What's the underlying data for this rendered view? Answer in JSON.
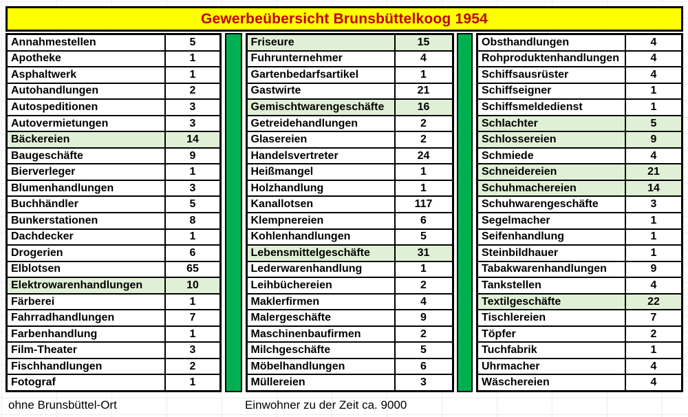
{
  "title": "Gewerbeübersicht Brunsbüttelkoog 1954",
  "footer": {
    "left": "ohne Brunsbüttel-Ort",
    "right": "Einwohner zu der Zeit ca. 9000"
  },
  "colors": {
    "title_background": "#FFFF00",
    "title_text": "#C00000",
    "separator_green": "#00B050",
    "highlight_green": "#E0F0D6",
    "border": "#000000"
  },
  "columns": [
    {
      "rows": [
        {
          "label": "Annahmestellen",
          "value": 5,
          "highlight": false
        },
        {
          "label": "Apotheke",
          "value": 1,
          "highlight": false
        },
        {
          "label": "Asphaltwerk",
          "value": 1,
          "highlight": false
        },
        {
          "label": "Autohandlungen",
          "value": 2,
          "highlight": false
        },
        {
          "label": "Autospeditionen",
          "value": 3,
          "highlight": false
        },
        {
          "label": "Autovermietungen",
          "value": 3,
          "highlight": false
        },
        {
          "label": "Bäckereien",
          "value": 14,
          "highlight": true
        },
        {
          "label": "Baugeschäfte",
          "value": 9,
          "highlight": false
        },
        {
          "label": "Bierverleger",
          "value": 1,
          "highlight": false
        },
        {
          "label": "Blumenhandlungen",
          "value": 3,
          "highlight": false
        },
        {
          "label": "Buchhändler",
          "value": 5,
          "highlight": false
        },
        {
          "label": "Bunkerstationen",
          "value": 8,
          "highlight": false
        },
        {
          "label": "Dachdecker",
          "value": 1,
          "highlight": false
        },
        {
          "label": "Drogerien",
          "value": 6,
          "highlight": false
        },
        {
          "label": "Elblotsen",
          "value": 65,
          "highlight": false
        },
        {
          "label": "Elektrowarenhandlungen",
          "value": 10,
          "highlight": true
        },
        {
          "label": "Färberei",
          "value": 1,
          "highlight": false
        },
        {
          "label": "Fahrradhandlungen",
          "value": 7,
          "highlight": false
        },
        {
          "label": "Farbenhandlung",
          "value": 1,
          "highlight": false
        },
        {
          "label": "Film-Theater",
          "value": 3,
          "highlight": false
        },
        {
          "label": "Fischhandlungen",
          "value": 2,
          "highlight": false
        },
        {
          "label": "Fotograf",
          "value": 1,
          "highlight": false
        }
      ]
    },
    {
      "rows": [
        {
          "label": "Friseure",
          "value": 15,
          "highlight": true
        },
        {
          "label": "Fuhrunternehmer",
          "value": 4,
          "highlight": false
        },
        {
          "label": "Gartenbedarfsartikel",
          "value": 1,
          "highlight": false
        },
        {
          "label": "Gastwirte",
          "value": 21,
          "highlight": false
        },
        {
          "label": "Gemischtwarengeschäfte",
          "value": 16,
          "highlight": true
        },
        {
          "label": "Getreidehandlungen",
          "value": 2,
          "highlight": false
        },
        {
          "label": "Glasereien",
          "value": 2,
          "highlight": false
        },
        {
          "label": "Handelsvertreter",
          "value": 24,
          "highlight": false
        },
        {
          "label": "Heißmangel",
          "value": 1,
          "highlight": false
        },
        {
          "label": "Holzhandlung",
          "value": 1,
          "highlight": false
        },
        {
          "label": "Kanallotsen",
          "value": 117,
          "highlight": false
        },
        {
          "label": "Klempnereien",
          "value": 6,
          "highlight": false
        },
        {
          "label": "Kohlenhandlungen",
          "value": 5,
          "highlight": false
        },
        {
          "label": "Lebensmittelgeschäfte",
          "value": 31,
          "highlight": true
        },
        {
          "label": "Lederwarenhandlung",
          "value": 1,
          "highlight": false
        },
        {
          "label": "Leihbüchereien",
          "value": 2,
          "highlight": false
        },
        {
          "label": "Maklerfirmen",
          "value": 4,
          "highlight": false
        },
        {
          "label": "Malergeschäfte",
          "value": 9,
          "highlight": false
        },
        {
          "label": "Maschinenbaufirmen",
          "value": 2,
          "highlight": false
        },
        {
          "label": "Milchgeschäfte",
          "value": 5,
          "highlight": false
        },
        {
          "label": "Möbelhandlungen",
          "value": 6,
          "highlight": false
        },
        {
          "label": "Müllereien",
          "value": 3,
          "highlight": false
        }
      ]
    },
    {
      "rows": [
        {
          "label": "Obsthandlungen",
          "value": 4,
          "highlight": false
        },
        {
          "label": "Rohproduktenhandlungen",
          "value": 4,
          "highlight": false
        },
        {
          "label": "Schiffsausrüster",
          "value": 4,
          "highlight": false
        },
        {
          "label": "Schiffseigner",
          "value": 1,
          "highlight": false
        },
        {
          "label": "Schiffsmeldedienst",
          "value": 1,
          "highlight": false
        },
        {
          "label": "Schlachter",
          "value": 5,
          "highlight": true
        },
        {
          "label": "Schlossereien",
          "value": 9,
          "highlight": true
        },
        {
          "label": "Schmiede",
          "value": 4,
          "highlight": false
        },
        {
          "label": "Schneidereien",
          "value": 21,
          "highlight": true
        },
        {
          "label": "Schuhmachereien",
          "value": 14,
          "highlight": true
        },
        {
          "label": "Schuhwarengeschäfte",
          "value": 3,
          "highlight": false
        },
        {
          "label": "Segelmacher",
          "value": 1,
          "highlight": false
        },
        {
          "label": "Seifenhandlung",
          "value": 1,
          "highlight": false
        },
        {
          "label": "Steinbildhauer",
          "value": 1,
          "highlight": false
        },
        {
          "label": "Tabakwarenhandlungen",
          "value": 9,
          "highlight": false
        },
        {
          "label": "Tankstellen",
          "value": 4,
          "highlight": false
        },
        {
          "label": "Textilgeschäfte",
          "value": 22,
          "highlight": true
        },
        {
          "label": "Tischlereien",
          "value": 7,
          "highlight": false
        },
        {
          "label": "Töpfer",
          "value": 2,
          "highlight": false
        },
        {
          "label": "Tuchfabrik",
          "value": 1,
          "highlight": false
        },
        {
          "label": "Uhrmacher",
          "value": 4,
          "highlight": false
        },
        {
          "label": "Wäschereien",
          "value": 4,
          "highlight": false
        }
      ]
    }
  ]
}
